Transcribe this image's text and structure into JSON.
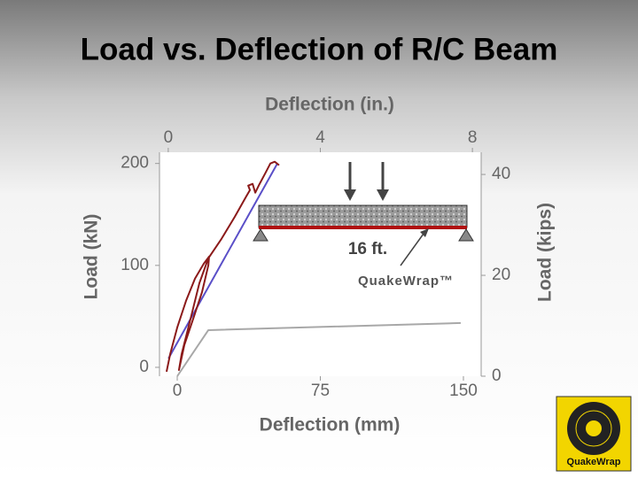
{
  "title": "Load vs. Deflection of R/C Beam",
  "chart_data": {
    "type": "line",
    "x_label": "Deflection (mm)",
    "x2_label": "Deflection (in.)",
    "y_label": "Load (kN)",
    "y2_label": "Load (kips)",
    "xlim": [
      -9.3,
      159.3
    ],
    "xticks": [
      0,
      75,
      150
    ],
    "x2lim": [
      -0.23,
      8.23
    ],
    "x2ticks": [
      0,
      4,
      8
    ],
    "ylim": [
      -8.7,
      211
    ],
    "yticks": [
      0,
      100,
      200
    ],
    "y2lim": [
      0,
      44.4
    ],
    "y2ticks": [
      0,
      20,
      40
    ],
    "series": [
      {
        "color": "#8b1a1a",
        "x": [
          -5.6,
          -3.7,
          0,
          4.6,
          9.3,
          13.9,
          16.7,
          16.3,
          13.0,
          8.4,
          3.7,
          0.9,
          2.3,
          7.0,
          11.6,
          16.3,
          23.2,
          30.2,
          36.2,
          38.1,
          37.2,
          39.5,
          40.9,
          42.7,
          46.4,
          48.8,
          51.1,
          53.4
        ],
        "values": [
          -4.3,
          13.0,
          39.1,
          65.2,
          87.0,
          101.7,
          108.7,
          100,
          73.9,
          47.8,
          21.7,
          -2.6,
          13.0,
          47.8,
          82.6,
          107.0,
          126.1,
          147.8,
          167.8,
          173.9,
          178.3,
          180,
          171.3,
          178.3,
          191.3,
          200,
          201.7,
          198.3
        ]
      },
      {
        "color": "#5a4fc8",
        "x": [
          -4.6,
          52.5
        ],
        "values": [
          8.7,
          200
        ]
      },
      {
        "color": "#a8a8a8",
        "x": [
          0,
          16.3,
          148.6
        ],
        "values": [
          -8.7,
          36.5,
          43.5
        ]
      }
    ],
    "annotations": [
      "16 ft.",
      "QuakeWrap™"
    ]
  },
  "logo": {
    "text": "QuakeWrap"
  }
}
